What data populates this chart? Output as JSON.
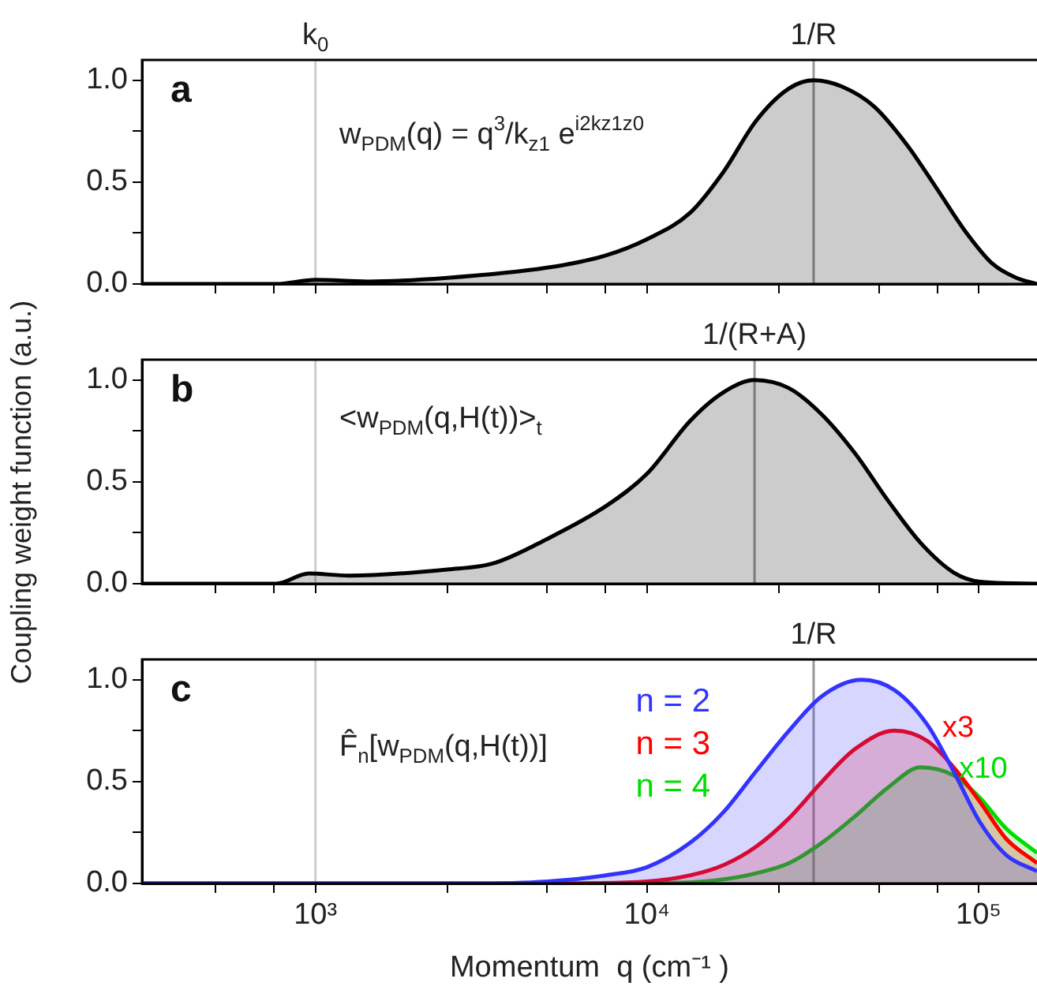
{
  "chart_data": [
    {
      "type": "area",
      "xlim": [
        300,
        150000
      ],
      "ylim": [
        0,
        1.1
      ],
      "log": "x",
      "tick_labels": "y",
      "marker": "none",
      "xticks": [
        {
          "value": 500,
          "label": null
        },
        {
          "value": 750,
          "label": null
        },
        {
          "value": 1000,
          "label": null
        },
        {
          "value": 2500,
          "label": null
        },
        {
          "value": 5000,
          "label": null
        },
        {
          "value": 7500,
          "label": null
        },
        {
          "value": 10000,
          "label": null
        },
        {
          "value": 25000,
          "label": null
        },
        {
          "value": 50000,
          "label": null
        },
        {
          "value": 75000,
          "label": null
        },
        {
          "value": 100000,
          "label": null
        }
      ],
      "yticks": [
        {
          "value": 0,
          "label": "0.0"
        },
        {
          "value": 0.25,
          "label": null
        },
        {
          "value": 0.5,
          "label": "0.5"
        },
        {
          "value": 0.75,
          "label": null
        },
        {
          "value": 1,
          "label": "1.0"
        }
      ],
      "ref_lines": [
        {
          "axis": "x",
          "value": 1000,
          "label": "k$_{0}$",
          "color": "#cccccc"
        },
        {
          "axis": "x",
          "value": 31800,
          "label": "1/R",
          "color": "#999999"
        }
      ],
      "annotations": [
        "a",
        "w$_{PDM}$(q) = q$^{3}$/k$_{z1}$ e$^{i2kz1z0}$"
      ],
      "series": [
        {
          "color": "#000000",
          "x": [
            300,
            760,
            1000,
            1440,
            2500,
            5000,
            7500,
            10000,
            13500,
            17000,
            21300,
            26800,
            31800,
            38600,
            48500,
            61000,
            74000,
            92000,
            110000,
            130000,
            150000
          ],
          "values": [
            0,
            0,
            0.02,
            0.012,
            0.03,
            0.08,
            0.14,
            0.22,
            0.35,
            0.55,
            0.8,
            0.96,
            1,
            0.97,
            0.87,
            0.68,
            0.48,
            0.25,
            0.1,
            0.03,
            0
          ]
        }
      ]
    },
    {
      "type": "area",
      "xlim": [
        300,
        150000
      ],
      "ylim": [
        0,
        1.1
      ],
      "log": "x",
      "tick_labels": "y",
      "marker": "none",
      "ylabel": "Coupling weight function (a.u.)",
      "xticks": [
        {
          "value": 500,
          "label": null
        },
        {
          "value": 750,
          "label": null
        },
        {
          "value": 1000,
          "label": null
        },
        {
          "value": 2500,
          "label": null
        },
        {
          "value": 5000,
          "label": null
        },
        {
          "value": 7500,
          "label": null
        },
        {
          "value": 10000,
          "label": null
        },
        {
          "value": 25000,
          "label": null
        },
        {
          "value": 50000,
          "label": null
        },
        {
          "value": 75000,
          "label": null
        },
        {
          "value": 100000,
          "label": null
        }
      ],
      "yticks": [
        {
          "value": 0,
          "label": "0.0"
        },
        {
          "value": 0.25,
          "label": null
        },
        {
          "value": 0.5,
          "label": "0.5"
        },
        {
          "value": 0.75,
          "label": null
        },
        {
          "value": 1,
          "label": "1.0"
        }
      ],
      "ref_lines": [
        {
          "axis": "x",
          "value": 1000,
          "label": null,
          "color": "#cccccc"
        },
        {
          "axis": "x",
          "value": 21100,
          "label": "1/(R+A)",
          "color": "#999999"
        }
      ],
      "annotations": [
        "b",
        "<w$_{PDM}$(q,H(t))>$_{t}$"
      ],
      "series": [
        {
          "color": "#000000",
          "x": [
            300,
            760,
            955,
            1260,
            2500,
            3440,
            5000,
            7500,
            10000,
            13500,
            17000,
            21100,
            26800,
            33700,
            42400,
            53200,
            66900,
            84100,
            101000,
            150000
          ],
          "values": [
            0,
            0,
            0.05,
            0.04,
            0.07,
            0.1,
            0.22,
            0.38,
            0.54,
            0.8,
            0.94,
            1,
            0.96,
            0.83,
            0.64,
            0.41,
            0.2,
            0.055,
            0.01,
            0
          ]
        }
      ]
    },
    {
      "type": "area",
      "xlim": [
        300,
        150000
      ],
      "ylim": [
        0,
        1.1
      ],
      "log": "x",
      "marker": "none",
      "xlabel": "Momentum  q (cm⁻¹ )",
      "xticks": [
        {
          "value": 500,
          "label": null
        },
        {
          "value": 750,
          "label": null
        },
        {
          "value": 1000,
          "label": "10³"
        },
        {
          "value": 2500,
          "label": null
        },
        {
          "value": 5000,
          "label": null
        },
        {
          "value": 7500,
          "label": null
        },
        {
          "value": 10000,
          "label": "10⁴"
        },
        {
          "value": 25000,
          "label": null
        },
        {
          "value": 50000,
          "label": null
        },
        {
          "value": 75000,
          "label": null
        },
        {
          "value": 100000,
          "label": "10⁵"
        }
      ],
      "yticks": [
        {
          "value": 0,
          "label": "0.0"
        },
        {
          "value": 0.25,
          "label": null
        },
        {
          "value": 0.5,
          "label": "0.5"
        },
        {
          "value": 0.75,
          "label": null
        },
        {
          "value": 1,
          "label": "1.0"
        }
      ],
      "ref_lines": [
        {
          "axis": "x",
          "value": 1000,
          "label": null,
          "color": "#cccccc"
        },
        {
          "axis": "x",
          "value": 31800,
          "label": "1/R",
          "color": "#999999"
        }
      ],
      "annotations": [
        "c",
        "F̂$_{n}$[w$_{PDM}$(q,H(t))]",
        "x3",
        "x10"
      ],
      "series": [
        {
          "name": "n = 2",
          "color": "#3333ff",
          "x": [
            300,
            3000,
            5000,
            7500,
            10000,
            13500,
            17000,
            21300,
            26800,
            33700,
            44400,
            55700,
            70000,
            84100,
            101000,
            121000,
            150000
          ],
          "values": [
            0,
            0,
            0.01,
            0.04,
            0.08,
            0.2,
            0.35,
            0.55,
            0.75,
            0.92,
            1,
            0.95,
            0.78,
            0.55,
            0.3,
            0.14,
            0.06
          ]
        },
        {
          "name": "n = 3",
          "color": "#ff0000",
          "x": [
            300,
            5000,
            10000,
            13500,
            17000,
            21300,
            26800,
            33700,
            42400,
            55700,
            70000,
            84100,
            101000,
            121000,
            150000
          ],
          "values": [
            0,
            0,
            0.01,
            0.04,
            0.09,
            0.18,
            0.32,
            0.5,
            0.66,
            0.75,
            0.7,
            0.57,
            0.4,
            0.22,
            0.1
          ]
        },
        {
          "name": "n = 4",
          "color": "#00dd00",
          "x": [
            300,
            7500,
            13500,
            17000,
            21300,
            26800,
            33700,
            42400,
            53200,
            66900,
            84100,
            101000,
            121000,
            150000
          ],
          "values": [
            0,
            0,
            0.005,
            0.02,
            0.05,
            0.1,
            0.2,
            0.33,
            0.47,
            0.57,
            0.53,
            0.42,
            0.27,
            0.15
          ]
        }
      ]
    }
  ]
}
